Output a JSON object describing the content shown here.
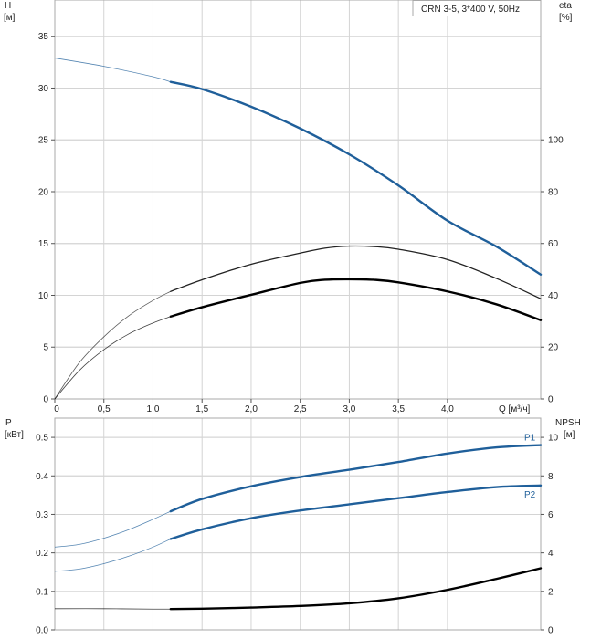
{
  "chart_data": [
    {
      "type": "line",
      "panel": "top",
      "title": "CRN 3-5, 3*400 V, 50Hz",
      "x_label": "Q [м³/ч]",
      "x_range": [
        0,
        4.95
      ],
      "x_ticks": [
        "0",
        "0,5",
        "1,0",
        "1,5",
        "2,0",
        "2,5",
        "3,0",
        "3,5",
        "4,0"
      ],
      "y_label_line1": "H",
      "y_label_line2": "[м]",
      "y_range": [
        0,
        38.5
      ],
      "y_ticks": [
        "0",
        "5",
        "10",
        "15",
        "20",
        "25",
        "30",
        "35"
      ],
      "y2_label_line1": "eta",
      "y2_label_line2": "[%]",
      "y2_range": [
        0,
        154
      ],
      "y2_ticks": [
        "0",
        "20",
        "40",
        "60",
        "80",
        "100"
      ],
      "grid": true,
      "series": [
        {
          "axis": "left",
          "color": "#1f5f9a",
          "x": [
            0,
            0.5,
            1.0,
            1.18,
            1.5,
            2.0,
            2.5,
            3.0,
            3.5,
            4.0,
            4.5,
            4.95
          ],
          "values": [
            32.9,
            32.1,
            31.1,
            30.6,
            29.9,
            28.2,
            26.1,
            23.6,
            20.6,
            17.2,
            14.7,
            12.0
          ],
          "operating_range": [
            1.18,
            4.95
          ]
        },
        {
          "axis": "right",
          "color": "#222222",
          "x": [
            0,
            0.25,
            0.5,
            0.75,
            1.0,
            1.18,
            1.5,
            2.0,
            2.5,
            2.75,
            3.0,
            3.25,
            3.5,
            4.0,
            4.5,
            4.95
          ],
          "values": [
            0,
            14,
            24,
            32,
            38,
            41.5,
            46,
            52,
            56.3,
            58.2,
            59,
            58.8,
            57.8,
            53.8,
            46.5,
            38.7
          ],
          "operating_range": [
            1.18,
            4.95
          ]
        },
        {
          "axis": "right",
          "color": "#000000",
          "x": [
            0,
            0.25,
            0.5,
            0.75,
            1.0,
            1.18,
            1.5,
            2.0,
            2.5,
            2.75,
            3.0,
            3.25,
            3.5,
            4.0,
            4.5,
            4.95
          ],
          "values": [
            0,
            11,
            19,
            25,
            29.3,
            31.8,
            35.4,
            40.2,
            44.8,
            46,
            46.2,
            46,
            45,
            41.5,
            36.5,
            30.4
          ],
          "operating_range": [
            1.18,
            4.95
          ]
        }
      ]
    },
    {
      "type": "line",
      "panel": "bottom",
      "x_range": [
        0,
        4.95
      ],
      "y_label_line1": "P",
      "y_label_line2": "[кВт]",
      "y_range": [
        0,
        0.55
      ],
      "y_ticks": [
        "0.0",
        "0.1",
        "0.2",
        "0.3",
        "0.4",
        "0.5"
      ],
      "y2_label_line1": "NPSH",
      "y2_label_line2": "[м]",
      "y2_range": [
        0,
        11
      ],
      "y2_ticks": [
        "0",
        "2",
        "4",
        "6",
        "8",
        "10"
      ],
      "grid": true,
      "series": [
        {
          "name": "P1",
          "axis": "left",
          "color": "#1f5f9a",
          "x": [
            0,
            0.25,
            0.5,
            0.75,
            1.0,
            1.18,
            1.5,
            2.0,
            2.5,
            3.0,
            3.5,
            4.0,
            4.5,
            4.95
          ],
          "values": [
            0.215,
            0.222,
            0.238,
            0.26,
            0.287,
            0.308,
            0.34,
            0.373,
            0.397,
            0.416,
            0.436,
            0.458,
            0.474,
            0.48
          ],
          "operating_range": [
            1.18,
            4.95
          ]
        },
        {
          "name": "P2",
          "axis": "left",
          "color": "#1f5f9a",
          "x": [
            0,
            0.25,
            0.5,
            0.75,
            1.0,
            1.18,
            1.5,
            2.0,
            2.5,
            3.0,
            3.5,
            4.0,
            4.5,
            4.95
          ],
          "values": [
            0.152,
            0.158,
            0.172,
            0.191,
            0.215,
            0.236,
            0.261,
            0.29,
            0.31,
            0.326,
            0.342,
            0.358,
            0.371,
            0.375
          ],
          "operating_range": [
            1.18,
            4.95
          ]
        },
        {
          "axis": "right",
          "color": "#000000",
          "x": [
            0,
            0.5,
            1.0,
            1.18,
            1.5,
            2.0,
            2.5,
            3.0,
            3.5,
            4.0,
            4.5,
            4.95
          ],
          "values": [
            1.1,
            1.1,
            1.08,
            1.08,
            1.1,
            1.16,
            1.24,
            1.38,
            1.64,
            2.08,
            2.65,
            3.2
          ],
          "operating_range": [
            1.18,
            4.95
          ]
        }
      ]
    }
  ]
}
